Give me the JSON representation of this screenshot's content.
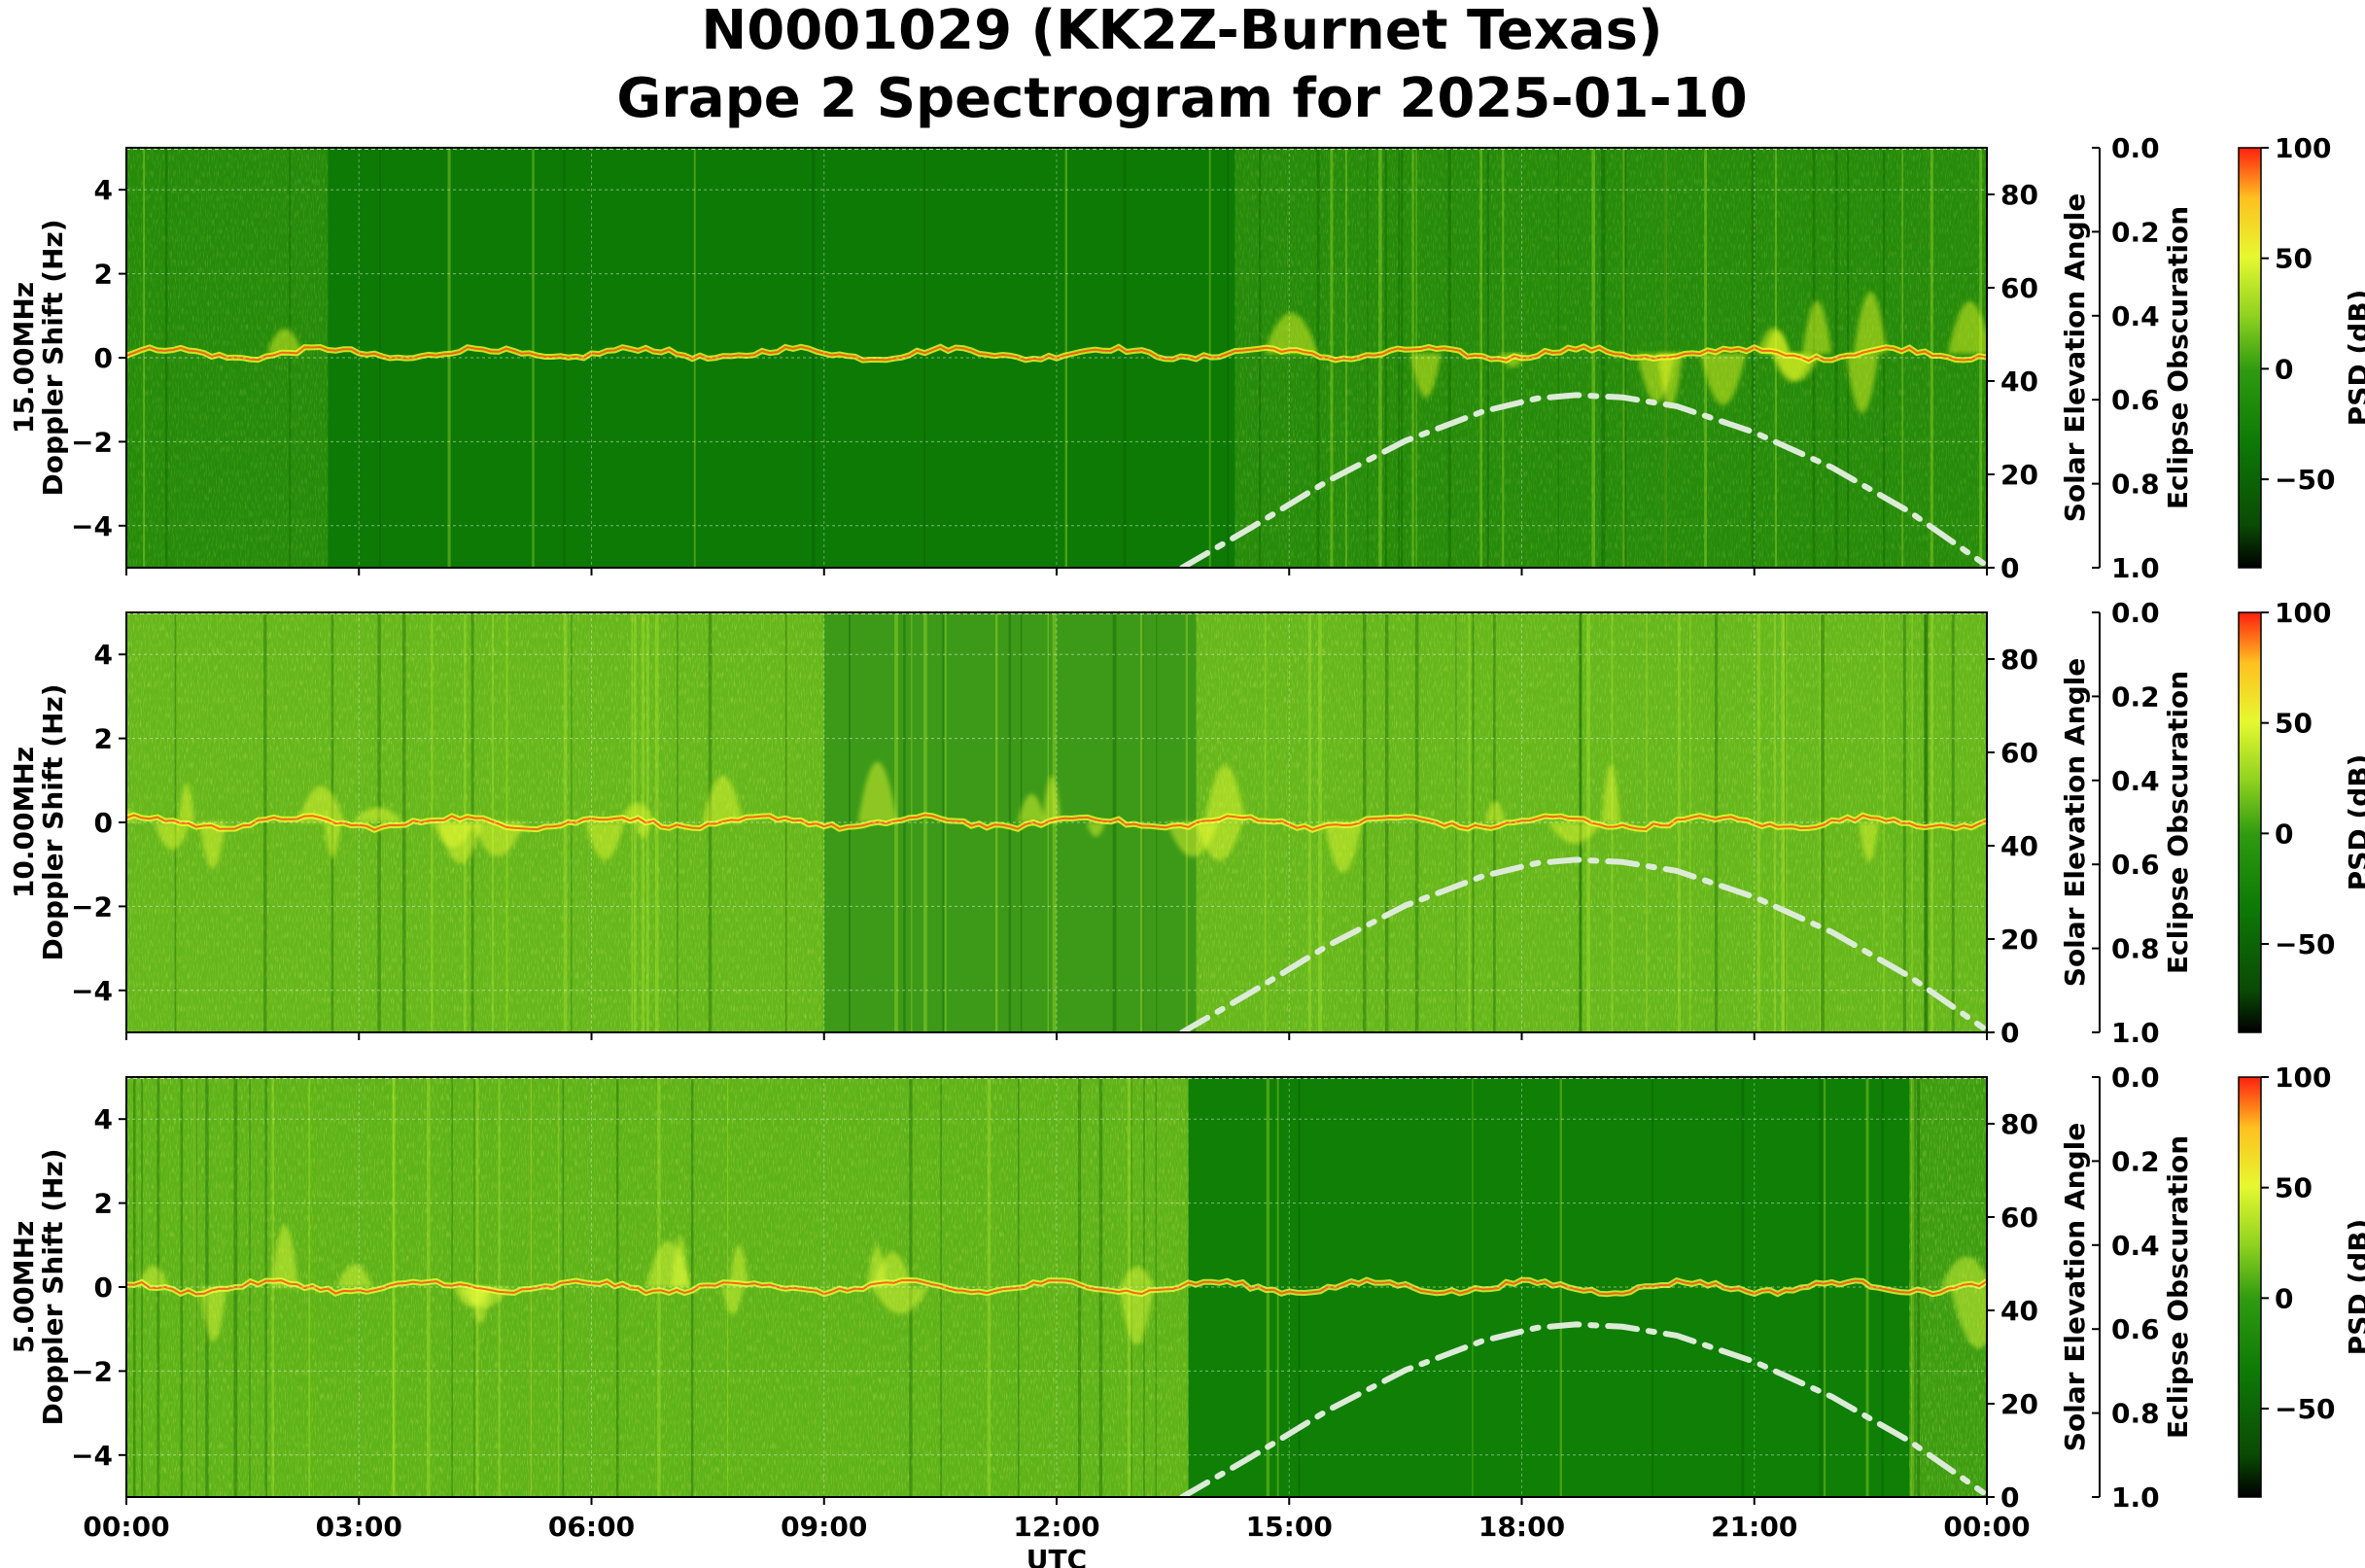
{
  "title": "N0001029 (KK2Z-Burnet Texas)",
  "subtitle": "Grape 2 Spectrogram for 2025-01-10",
  "chart_data": [
    {
      "type": "heatmap",
      "panel_label": "15.00MHz",
      "ylabel": "Doppler Shift (Hz)",
      "ylim": [
        -5,
        5
      ],
      "yticks": [
        "4",
        "2",
        "0",
        "−2",
        "−4"
      ],
      "y2label": "Solar Elevation Angle",
      "y2lim": [
        0,
        90
      ],
      "y2ticks": [
        "80",
        "60",
        "40",
        "20",
        "0"
      ],
      "y3label": "Eclipse Obscuration",
      "y3lim": [
        0.0,
        1.0
      ],
      "y3ticks": [
        "0.0",
        "0.2",
        "0.4",
        "0.6",
        "0.8",
        "1.0"
      ],
      "colorbar_label": "PSD (dB)",
      "colorbar_ticks": [
        "100",
        "50",
        "0",
        "−50"
      ],
      "colorbar_range": [
        -90,
        100
      ],
      "spectrum": {
        "carrier_offset": 0.1,
        "segments": [
          [
            0,
            2.6
          ],
          [
            2.6,
            7.2
          ],
          [
            7.2,
            14.3
          ],
          [
            14.3,
            24
          ]
        ],
        "background": "#0e7a06",
        "signal_color": "#f2ff28",
        "peak_color": "#ff3a10"
      },
      "solar_elevation": {
        "x_hours": [
          13.62,
          14.5,
          15.5,
          16.5,
          17.5,
          18.2,
          18.7,
          19.3,
          20.0,
          21.0,
          22.0,
          23.0,
          23.95
        ],
        "deg": [
          0.0,
          8.5,
          18.6,
          27.2,
          33.5,
          36.3,
          37.0,
          36.5,
          34.6,
          29.0,
          21.5,
          12.0,
          1.0
        ],
        "style": "dash-dot",
        "color": "#dcebd8"
      }
    },
    {
      "type": "heatmap",
      "panel_label": "10.00MHz",
      "ylabel": "Doppler Shift (Hz)",
      "ylim": [
        -5,
        5
      ],
      "yticks": [
        "4",
        "2",
        "0",
        "−2",
        "−4"
      ],
      "y2label": "Solar Elevation Angle",
      "y2lim": [
        0,
        90
      ],
      "y2ticks": [
        "80",
        "60",
        "40",
        "20",
        "0"
      ],
      "y3label": "Eclipse Obscuration",
      "y3lim": [
        0.0,
        1.0
      ],
      "y3ticks": [
        "0.0",
        "0.2",
        "0.4",
        "0.6",
        "0.8",
        "1.0"
      ],
      "colorbar_label": "PSD (dB)",
      "colorbar_ticks": [
        "100",
        "50",
        "0",
        "−50"
      ],
      "colorbar_range": [
        -90,
        100
      ],
      "spectrum": {
        "carrier_offset": 0.0,
        "segments": [
          [
            0,
            2.5
          ],
          [
            2.5,
            9.0
          ],
          [
            9.0,
            13.8
          ],
          [
            13.8,
            24
          ]
        ],
        "background": "#3d9a18",
        "signal_color": "#f0ff30",
        "peak_color": "#ff3a10"
      },
      "solar_elevation": {
        "x_hours": [
          13.62,
          14.5,
          15.5,
          16.5,
          17.5,
          18.2,
          18.7,
          19.3,
          20.0,
          21.0,
          22.0,
          23.0,
          23.95
        ],
        "deg": [
          0.0,
          8.5,
          18.6,
          27.2,
          33.5,
          36.3,
          37.0,
          36.5,
          34.6,
          29.0,
          21.5,
          12.0,
          1.0
        ],
        "style": "dash-dot",
        "color": "#dcebd8"
      }
    },
    {
      "type": "heatmap",
      "panel_label": "5.00MHz",
      "ylabel": "Doppler Shift (Hz)",
      "ylim": [
        -5,
        5
      ],
      "yticks": [
        "4",
        "2",
        "0",
        "−2",
        "−4"
      ],
      "y2label": "Solar Elevation Angle",
      "y2lim": [
        0,
        90
      ],
      "y2ticks": [
        "80",
        "60",
        "40",
        "20",
        "0"
      ],
      "y3label": "Eclipse Obscuration",
      "y3lim": [
        0.0,
        1.0
      ],
      "y3ticks": [
        "0.0",
        "0.2",
        "0.4",
        "0.6",
        "0.8",
        "1.0"
      ],
      "colorbar_label": "PSD (dB)",
      "colorbar_ticks": [
        "100",
        "50",
        "0",
        "−50"
      ],
      "colorbar_range": [
        -90,
        100
      ],
      "xlabel": "UTC",
      "xticks": [
        "00:00",
        "03:00",
        "06:00",
        "09:00",
        "12:00",
        "15:00",
        "18:00",
        "21:00",
        "00:00"
      ],
      "spectrum": {
        "carrier_offset": 0.0,
        "segments": [
          [
            0,
            13.7
          ],
          [
            13.7,
            23.0
          ],
          [
            23.0,
            24
          ]
        ],
        "background": "#0f7f06",
        "signal_color": "#eaff3a",
        "peak_color": "#ff3a10"
      },
      "solar_elevation": {
        "x_hours": [
          13.62,
          14.5,
          15.5,
          16.5,
          17.5,
          18.2,
          18.7,
          19.3,
          20.0,
          21.0,
          22.0,
          23.0,
          23.95
        ],
        "deg": [
          0.0,
          8.5,
          18.6,
          27.2,
          33.5,
          36.3,
          37.0,
          36.5,
          34.6,
          29.0,
          21.5,
          12.0,
          1.0
        ],
        "style": "dash-dot",
        "color": "#dcebd8"
      }
    }
  ],
  "colors": {
    "cmap": [
      "#000000",
      "#0a4a05",
      "#0e7a06",
      "#2f9a10",
      "#8fd220",
      "#e6f830",
      "#ffc020",
      "#ff2010"
    ]
  }
}
